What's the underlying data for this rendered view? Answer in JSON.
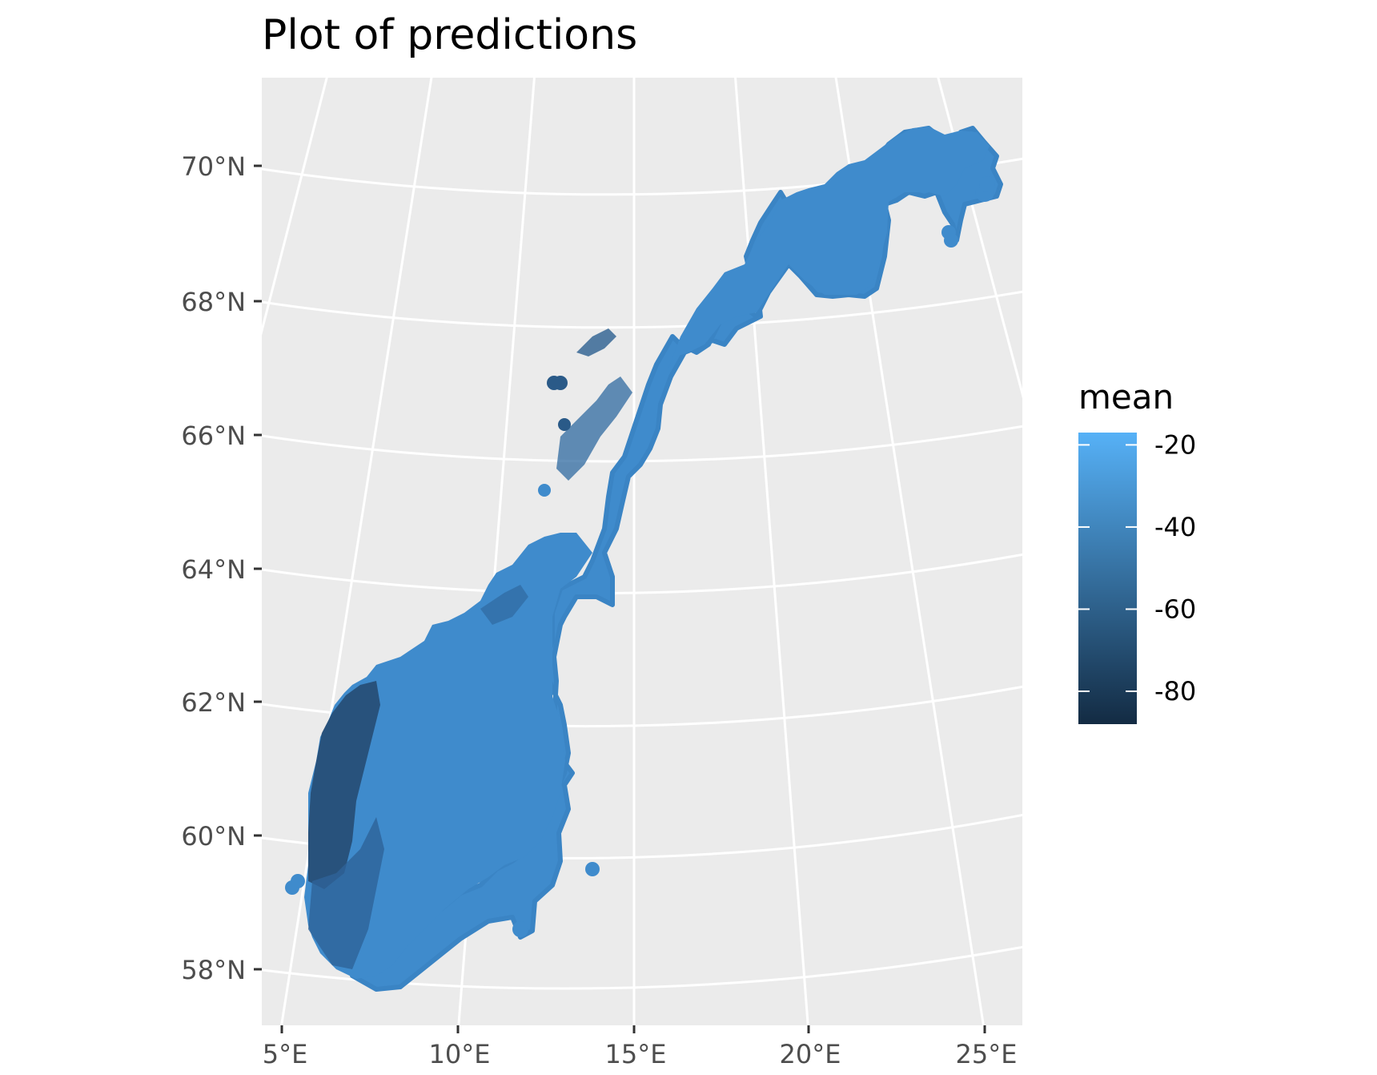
{
  "title": "Plot of predictions",
  "map": {
    "region": "Norway",
    "projection": "conic",
    "latitude_ticks": [
      "58°N",
      "60°N",
      "62°N",
      "64°N",
      "66°N",
      "68°N",
      "70°N"
    ],
    "longitude_ticks": [
      "5°E",
      "10°E",
      "15°E",
      "20°E",
      "25°E"
    ],
    "panel_background": "#ebebeb",
    "grid_color": "#ffffff"
  },
  "legend": {
    "title": "mean",
    "labels": [
      "-20",
      "-40",
      "-60",
      "-80"
    ],
    "values": [
      -20,
      -40,
      -60,
      -80
    ],
    "range": [
      -88,
      -17
    ],
    "color_low": "#132b43",
    "color_high": "#56b1f7"
  },
  "colors": {
    "fill_main": "#3f8bcc",
    "fill_dark": "#1e3f60",
    "fill_mid": "#2f6aa0"
  }
}
